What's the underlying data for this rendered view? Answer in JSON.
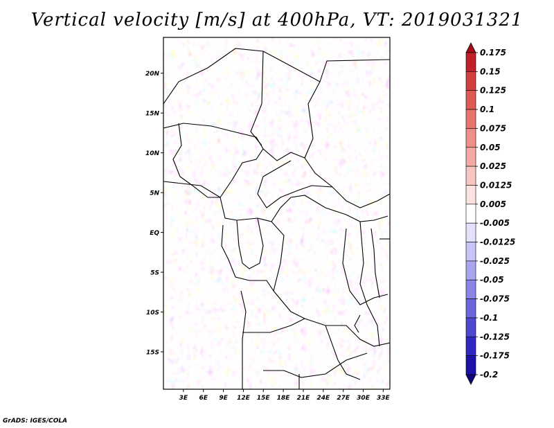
{
  "title": "Vertical velocity [m/s] at 400hPa, VT: 2019031321",
  "credit": "GrADS: IGES/COLA",
  "map": {
    "lat_labels": [
      "20N",
      "15N",
      "10N",
      "5N",
      "EQ",
      "5S",
      "10S",
      "15S"
    ],
    "lat_values": [
      20,
      15,
      10,
      5,
      0,
      -5,
      -10,
      -15
    ],
    "lon_labels": [
      "3E",
      "6E",
      "9E",
      "12E",
      "15E",
      "18E",
      "21E",
      "24E",
      "27E",
      "30E",
      "33E"
    ],
    "lon_values": [
      3,
      6,
      9,
      12,
      15,
      18,
      21,
      24,
      27,
      30,
      33
    ],
    "lat_range": [
      -19.7,
      24.5
    ],
    "lon_range": [
      0,
      34
    ]
  },
  "colorbar": {
    "labels": [
      "0.175",
      "0.15",
      "0.125",
      "0.1",
      "0.075",
      "0.05",
      "0.025",
      "0.0125",
      "0.005",
      "-0.005",
      "-0.0125",
      "-0.025",
      "-0.05",
      "-0.075",
      "-0.1",
      "-0.125",
      "-0.175",
      "-0.2"
    ],
    "colors": [
      "#a50f15",
      "#c0202a",
      "#d33f3f",
      "#e05a55",
      "#e8746c",
      "#ef9088",
      "#f4aaa3",
      "#f8c6c0",
      "#fce3e0",
      "#ffffff",
      "#e3e1fb",
      "#c6c3f5",
      "#a8a4ee",
      "#8a85e6",
      "#6c66dc",
      "#4e47cf",
      "#3028c0",
      "#1c12a8",
      "#12087e"
    ]
  }
}
